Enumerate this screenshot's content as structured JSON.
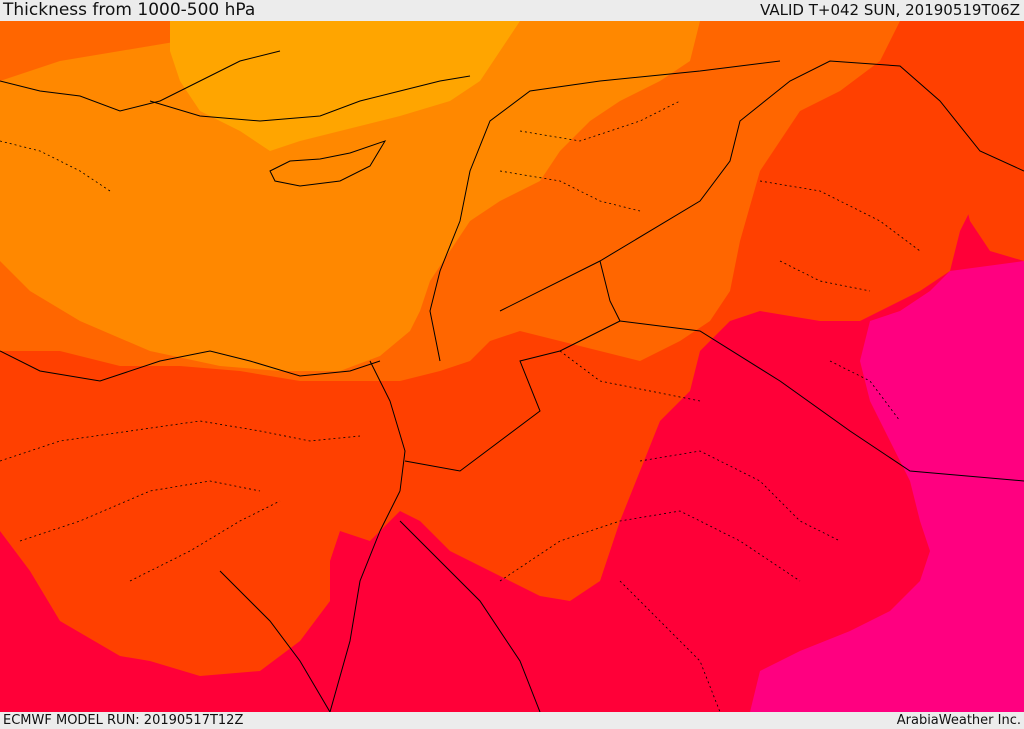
{
  "header": {
    "title": "Thickness from 1000-500 hPa",
    "valid": "VALID T+042 SUN, 20190519T06Z"
  },
  "footer": {
    "model_run": "ECMWF MODEL RUN: 20190517T12Z",
    "credit": "ArabiaWeather Inc."
  },
  "map": {
    "fill_colors": {
      "yellow_orange": "#ffa500",
      "light_orange": "#ff8800",
      "orange": "#ff6600",
      "red_orange": "#ff4000",
      "crimson": "#ff0038",
      "magenta": "#ff0080"
    },
    "border_color": "#000000"
  }
}
